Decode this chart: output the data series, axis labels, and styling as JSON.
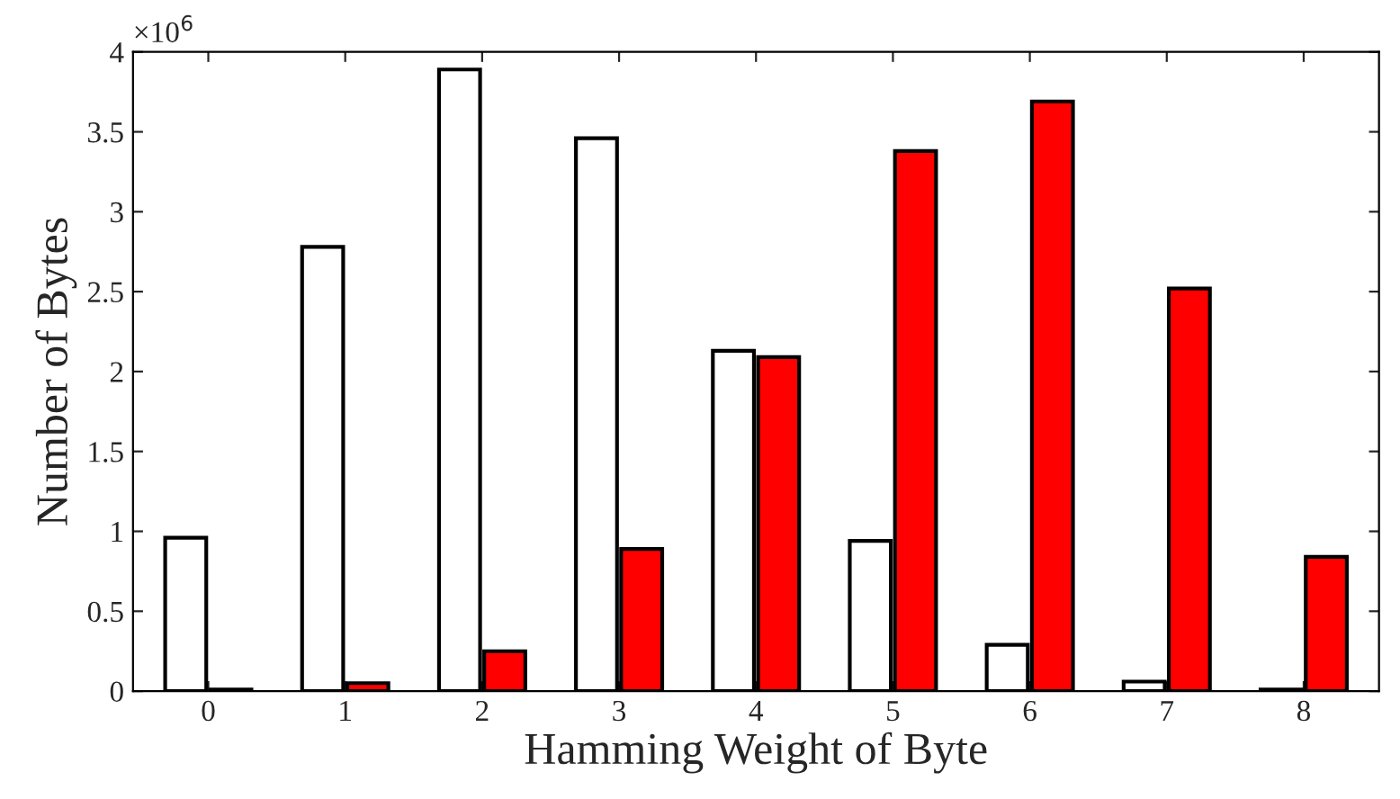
{
  "chart_data": {
    "type": "bar",
    "xlabel": "Hamming Weight of Byte",
    "ylabel": "Number of Bytes",
    "categories": [
      "0",
      "1",
      "2",
      "3",
      "4",
      "5",
      "6",
      "7",
      "8"
    ],
    "series": [
      {
        "color": "#ffffff",
        "values": [
          0.96,
          2.78,
          3.89,
          3.46,
          2.13,
          0.94,
          0.29,
          0.06,
          0.01
        ]
      },
      {
        "color": "#ff0000",
        "values": [
          0.01,
          0.05,
          0.25,
          0.89,
          2.09,
          3.38,
          3.69,
          2.52,
          0.84
        ]
      }
    ],
    "ylim": [
      0,
      4
    ],
    "yticks": [
      0,
      0.5,
      1,
      1.5,
      2,
      2.5,
      3,
      3.5,
      4
    ],
    "annotations": [
      "×10$^{6}$"
    ],
    "grid": false
  }
}
